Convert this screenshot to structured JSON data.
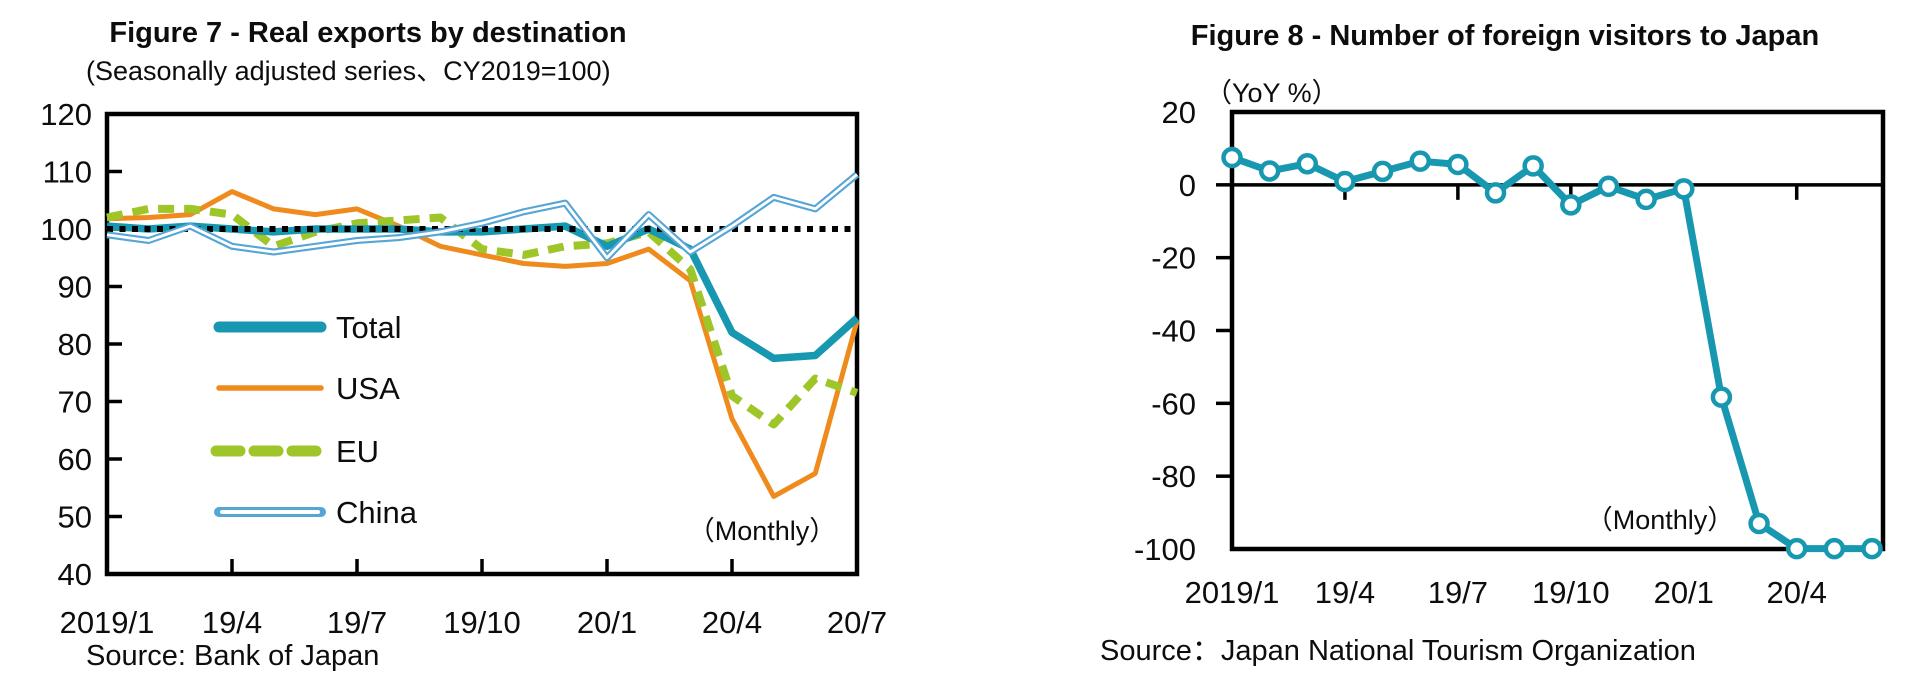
{
  "figure7": {
    "title": "Figure 7 - Real exports by destination",
    "subtitle": "(Seasonally adjusted series、CY2019=100)",
    "source": "Source: Bank of Japan",
    "annotation": "（Monthly）"
  },
  "figure8": {
    "title": "Figure 8 - Number of foreign visitors to Japan",
    "subtitle": "（YoY %）",
    "source": "Source：Japan National Tourism Organization",
    "annotation": "（Monthly）"
  },
  "colors": {
    "total_teal": "#1798b0",
    "usa_orange": "#ef8b1d",
    "eu_green": "#9fc629",
    "china_blue": "#55a5d5",
    "axis_black": "#000000"
  },
  "chart_data": [
    {
      "type": "line",
      "title": "Figure 7 - Real exports by destination",
      "subtitle": "(Seasonally adjusted series、CY2019=100)",
      "annotation": "（Monthly）",
      "source": "Source: Bank of Japan",
      "categories": [
        "2019/1",
        "19/2",
        "19/3",
        "19/4",
        "19/5",
        "19/6",
        "19/7",
        "19/8",
        "19/9",
        "19/10",
        "19/11",
        "19/12",
        "20/1",
        "20/2",
        "20/3",
        "20/4",
        "20/5",
        "20/6",
        "20/7"
      ],
      "x_tick_labels": [
        "2019/1",
        "19/4",
        "19/7",
        "19/10",
        "20/1",
        "20/4",
        "20/7"
      ],
      "x_tick_indices": [
        0,
        3,
        6,
        9,
        12,
        15,
        18
      ],
      "ylim": [
        40,
        120
      ],
      "y_ticks": [
        120,
        110,
        100,
        90,
        80,
        70,
        60,
        50,
        40
      ],
      "reference_line": 100,
      "grid": false,
      "legend_position": "inside-left",
      "series": [
        {
          "name": "Total",
          "color": "#1798b0",
          "style": "solid-thick",
          "values": [
            100.5,
            100,
            100.5,
            100,
            99.5,
            100,
            100,
            100,
            99.5,
            99.5,
            100,
            100.5,
            97,
            100,
            96.5,
            82,
            77.5,
            78,
            84.5
          ]
        },
        {
          "name": "USA",
          "color": "#ef8b1d",
          "style": "solid",
          "values": [
            101.8,
            102,
            102.5,
            106.5,
            103.5,
            102.5,
            103.5,
            100.5,
            97,
            95.5,
            94,
            93.5,
            94,
            96.5,
            91,
            67,
            53.5,
            57.5,
            84
          ]
        },
        {
          "name": "EU",
          "color": "#9fc629",
          "style": "dashed",
          "values": [
            102,
            103.5,
            103.5,
            102.5,
            97,
            99.5,
            101,
            101.5,
            102,
            96.5,
            95.5,
            97,
            97.5,
            99.5,
            93,
            71,
            66,
            74,
            71.5
          ]
        },
        {
          "name": "China",
          "color": "#55a5d5",
          "style": "double-line",
          "values": [
            99,
            98,
            100.5,
            97,
            96,
            97,
            98,
            98.5,
            99.5,
            101,
            103,
            104.5,
            95,
            102.5,
            96,
            100.5,
            105.5,
            103.5,
            109.5
          ]
        }
      ]
    },
    {
      "type": "line",
      "title": "Figure 8 - Number of foreign visitors to Japan",
      "subtitle": "（YoY %）",
      "annotation": "（Monthly）",
      "source": "Source：Japan National Tourism Organization",
      "categories": [
        "2019/1",
        "19/2",
        "19/3",
        "19/4",
        "19/5",
        "19/6",
        "19/7",
        "19/8",
        "19/9",
        "19/10",
        "19/11",
        "19/12",
        "20/1",
        "20/2",
        "20/3",
        "20/4",
        "20/5",
        "20/6"
      ],
      "x_tick_labels": [
        "2019/1",
        "19/4",
        "19/7",
        "19/10",
        "20/1",
        "20/4"
      ],
      "x_tick_indices": [
        0,
        3,
        6,
        9,
        12,
        15
      ],
      "ylim": [
        -100,
        20
      ],
      "y_ticks": [
        20,
        0,
        -20,
        -40,
        -60,
        -80,
        -100
      ],
      "zero_line": true,
      "grid": false,
      "legend_position": "none",
      "series": [
        {
          "name": "Foreign visitors YoY",
          "color": "#1798b0",
          "style": "solid-markers",
          "values": [
            7.5,
            3.8,
            5.8,
            0.9,
            3.7,
            6.5,
            5.6,
            -2.2,
            5.2,
            -5.5,
            -0.4,
            -4.0,
            -1.1,
            -58.3,
            -93.0,
            -99.9,
            -99.9,
            -99.9
          ]
        }
      ]
    }
  ]
}
